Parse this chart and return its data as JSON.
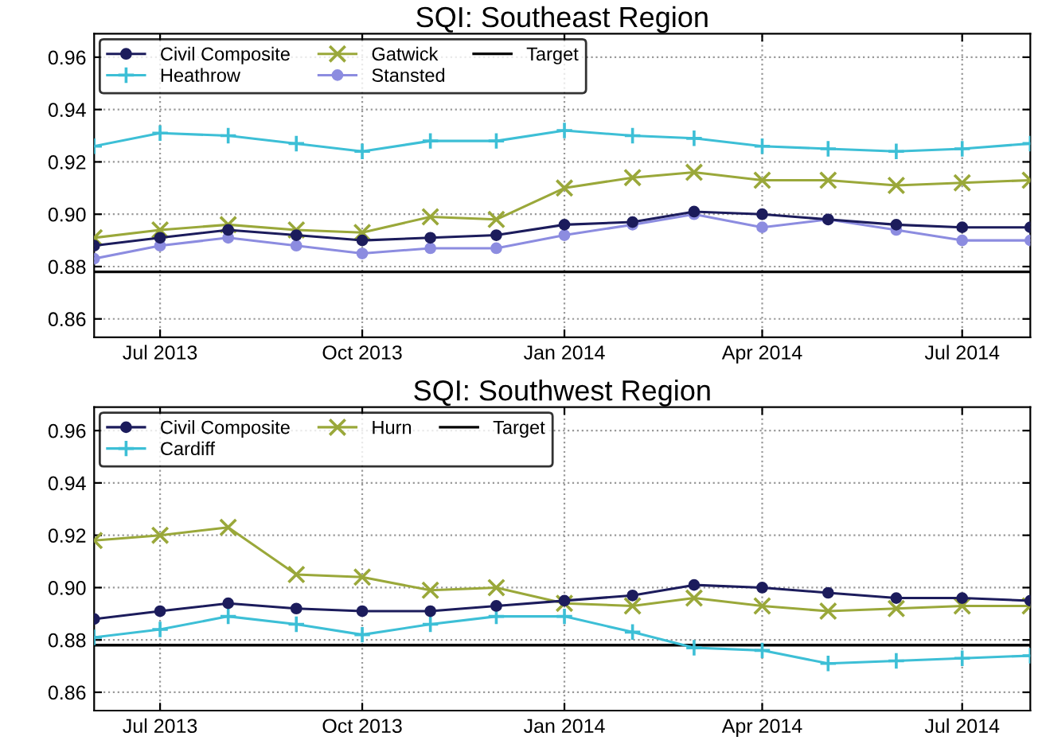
{
  "chart_data": [
    {
      "type": "line",
      "title": "SQI: Southeast Region",
      "x": [
        "2013-06",
        "2013-07",
        "2013-08",
        "2013-09",
        "2013-10",
        "2013-11",
        "2013-12",
        "2014-01",
        "2014-02",
        "2014-03",
        "2014-04",
        "2014-05",
        "2014-06",
        "2014-07",
        "2014-08"
      ],
      "series": [
        {
          "name": "Civil Composite",
          "color": "#1c1c5c",
          "marker": "circle",
          "values": [
            0.888,
            0.891,
            0.894,
            0.892,
            0.89,
            0.891,
            0.892,
            0.896,
            0.897,
            0.901,
            0.9,
            0.898,
            0.896,
            0.895,
            0.895
          ]
        },
        {
          "name": "Heathrow",
          "color": "#3dbfd6",
          "marker": "plus",
          "values": [
            0.926,
            0.931,
            0.93,
            0.927,
            0.924,
            0.928,
            0.928,
            0.932,
            0.93,
            0.929,
            0.926,
            0.925,
            0.924,
            0.925,
            0.927
          ]
        },
        {
          "name": "Gatwick",
          "color": "#9aa83a",
          "marker": "cross",
          "values": [
            0.891,
            0.894,
            0.896,
            0.894,
            0.893,
            0.899,
            0.898,
            0.91,
            0.914,
            0.916,
            0.913,
            0.913,
            0.911,
            0.912,
            0.913
          ]
        },
        {
          "name": "Stansted",
          "color": "#8c8ce0",
          "marker": "circle",
          "values": [
            0.883,
            0.888,
            0.891,
            0.888,
            0.885,
            0.887,
            0.887,
            0.892,
            0.896,
            0.9,
            0.895,
            0.898,
            0.894,
            0.89,
            0.89
          ]
        }
      ],
      "ref_lines": [
        {
          "axis": "y",
          "value": 0.878,
          "label": "Target",
          "color": "#000000"
        }
      ],
      "xlim": [
        "2013-06",
        "2014-08"
      ],
      "ylim": [
        0.853,
        0.969
      ],
      "xticks": [
        {
          "value": "2013-07",
          "label": "Jul 2013"
        },
        {
          "value": "2013-10",
          "label": "Oct 2013"
        },
        {
          "value": "2014-01",
          "label": "Jan 2014"
        },
        {
          "value": "2014-04",
          "label": "Apr 2014"
        },
        {
          "value": "2014-07",
          "label": "Jul 2014"
        }
      ],
      "yticks": [
        0.86,
        0.88,
        {
          "value": 0.9,
          "label": "0.90"
        },
        0.92,
        0.94,
        0.96
      ],
      "grid": true,
      "legend": "top left",
      "line_style": "solid"
    },
    {
      "type": "line",
      "title": "SQI: Southwest Region",
      "x": [
        "2013-06",
        "2013-07",
        "2013-08",
        "2013-09",
        "2013-10",
        "2013-11",
        "2013-12",
        "2014-01",
        "2014-02",
        "2014-03",
        "2014-04",
        "2014-05",
        "2014-06",
        "2014-07",
        "2014-08"
      ],
      "series": [
        {
          "name": "Civil Composite",
          "color": "#1c1c5c",
          "marker": "circle",
          "values": [
            0.888,
            0.891,
            0.894,
            0.892,
            0.891,
            0.891,
            0.893,
            0.895,
            0.897,
            0.901,
            0.9,
            0.898,
            0.896,
            0.896,
            0.895
          ]
        },
        {
          "name": "Cardiff",
          "color": "#3dbfd6",
          "marker": "plus",
          "values": [
            0.881,
            0.884,
            0.889,
            0.886,
            0.882,
            0.886,
            0.889,
            0.889,
            0.883,
            0.877,
            0.876,
            0.871,
            0.872,
            0.873,
            0.874
          ]
        },
        {
          "name": "Hurn",
          "color": "#9aa83a",
          "marker": "cross",
          "values": [
            0.918,
            0.92,
            0.923,
            0.905,
            0.904,
            0.899,
            0.9,
            0.894,
            0.893,
            0.896,
            0.893,
            0.891,
            0.892,
            0.893,
            0.893
          ]
        }
      ],
      "ref_lines": [
        {
          "axis": "y",
          "value": 0.878,
          "label": "Target",
          "color": "#000000"
        }
      ],
      "xlim": [
        "2013-06",
        "2014-08"
      ],
      "ylim": [
        0.853,
        0.969
      ],
      "xticks": [
        {
          "value": "2013-07",
          "label": "Jul 2013"
        },
        {
          "value": "2013-10",
          "label": "Oct 2013"
        },
        {
          "value": "2014-01",
          "label": "Jan 2014"
        },
        {
          "value": "2014-04",
          "label": "Apr 2014"
        },
        {
          "value": "2014-07",
          "label": "Jul 2014"
        }
      ],
      "yticks": [
        0.86,
        0.88,
        {
          "value": 0.9,
          "label": "0.90"
        },
        0.92,
        0.94,
        0.96
      ],
      "grid": true,
      "legend": "top left",
      "line_style": "solid"
    }
  ]
}
